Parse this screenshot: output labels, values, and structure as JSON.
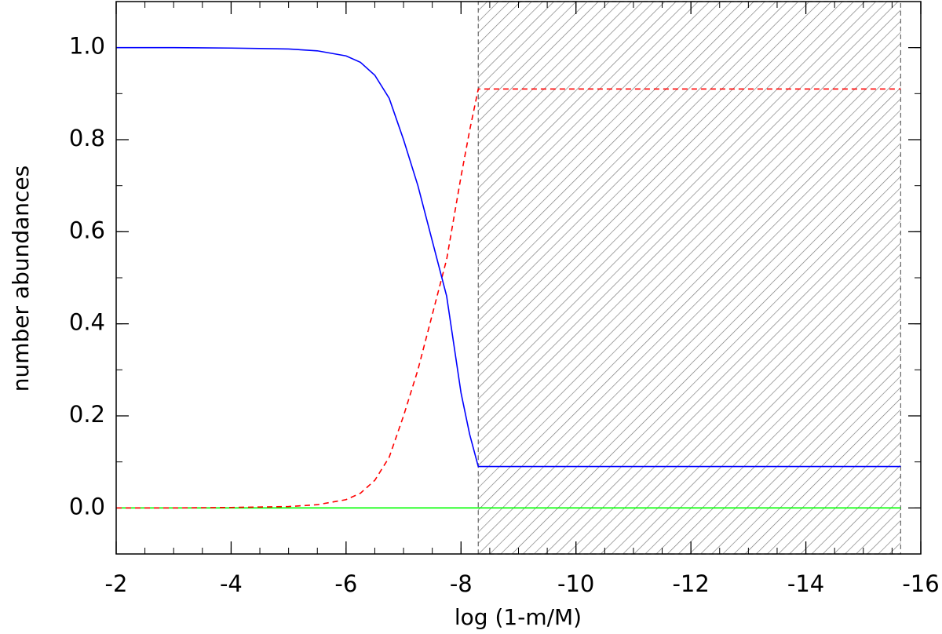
{
  "chart_data": {
    "type": "line",
    "xlabel": "log (1-m/M)",
    "ylabel": "number abundances",
    "x": [
      -2,
      -3,
      -4,
      -4.5,
      -5,
      -5.5,
      -6,
      -6.25,
      -6.5,
      -6.75,
      -7,
      -7.25,
      -7.5,
      -7.75,
      -8,
      -8.15,
      -8.3,
      -10,
      -12,
      -14,
      -15.65
    ],
    "series": [
      {
        "color": "#0000ff",
        "dash": false,
        "values": [
          1.0,
          1.0,
          0.999,
          0.998,
          0.997,
          0.993,
          0.982,
          0.968,
          0.94,
          0.89,
          0.8,
          0.7,
          0.58,
          0.46,
          0.25,
          0.16,
          0.09,
          0.09,
          0.09,
          0.09,
          0.09
        ]
      },
      {
        "color": "#ff0000",
        "dash": true,
        "values": [
          0,
          0,
          0.001,
          0.002,
          0.003,
          0.007,
          0.018,
          0.032,
          0.06,
          0.11,
          0.2,
          0.3,
          0.42,
          0.54,
          0.72,
          0.82,
          0.91,
          0.91,
          0.91,
          0.91,
          0.91
        ]
      },
      {
        "color": "#00ff00",
        "dash": false,
        "values": [
          0,
          0,
          0,
          0,
          0,
          0,
          0,
          0,
          0,
          0,
          0,
          0,
          0,
          0,
          0,
          0,
          0,
          0,
          0,
          0,
          0
        ]
      }
    ],
    "shaded_region": [
      -8.3,
      -15.65
    ],
    "xlim": [
      -2,
      -16
    ],
    "xticks": [
      -2,
      -4,
      -6,
      -8,
      -10,
      -12,
      -14,
      -16
    ],
    "xminor": 0.5,
    "ylim": [
      -0.1,
      1.1
    ],
    "yticks": [
      {
        "value": 0,
        "label": "0.0"
      },
      0.2,
      0.4,
      0.6,
      0.8,
      {
        "value": 1,
        "label": "1.0"
      }
    ],
    "yminor": 0.1
  }
}
